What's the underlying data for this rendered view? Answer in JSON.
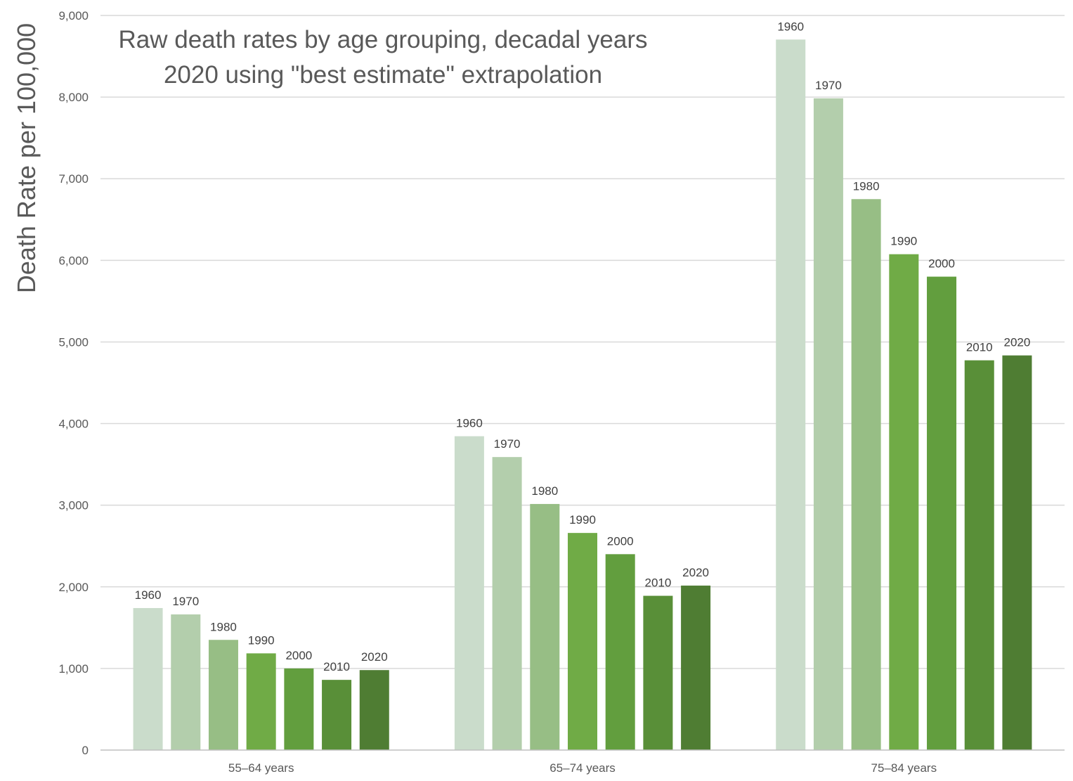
{
  "chart_data": {
    "type": "bar",
    "title_lines": [
      "Raw death rates by age grouping, decadal years",
      "2020 using \"best estimate\" extrapolation"
    ],
    "xlabel": "",
    "ylabel": "Death Rate per 100,000",
    "ylim": [
      0,
      9000
    ],
    "yticks": [
      0,
      1000,
      2000,
      3000,
      4000,
      5000,
      6000,
      7000,
      8000,
      9000
    ],
    "ytick_labels": [
      "0",
      "1,000",
      "2,000",
      "3,000",
      "4,000",
      "5,000",
      "6,000",
      "7,000",
      "8,000",
      "9,000"
    ],
    "grid": true,
    "legend": "none (year shown as data label above each bar)",
    "categories": [
      "55–64 years",
      "65–74 years",
      "75–84 years"
    ],
    "series": [
      {
        "name": "1960",
        "color": "#cadccb",
        "values": [
          1740,
          3845,
          8705
        ]
      },
      {
        "name": "1970",
        "color": "#b3ceac",
        "values": [
          1662,
          3590,
          7985
        ]
      },
      {
        "name": "1980",
        "color": "#97be85",
        "values": [
          1350,
          3015,
          6750
        ]
      },
      {
        "name": "1990",
        "color": "#70ab46",
        "values": [
          1185,
          2660,
          6075
        ]
      },
      {
        "name": "2000",
        "color": "#629e3e",
        "values": [
          1000,
          2400,
          5800
        ]
      },
      {
        "name": "2010",
        "color": "#598f38",
        "values": [
          860,
          1890,
          4775
        ]
      },
      {
        "name": "2020",
        "color": "#4f7d33",
        "values": [
          980,
          2015,
          4835
        ]
      }
    ]
  }
}
